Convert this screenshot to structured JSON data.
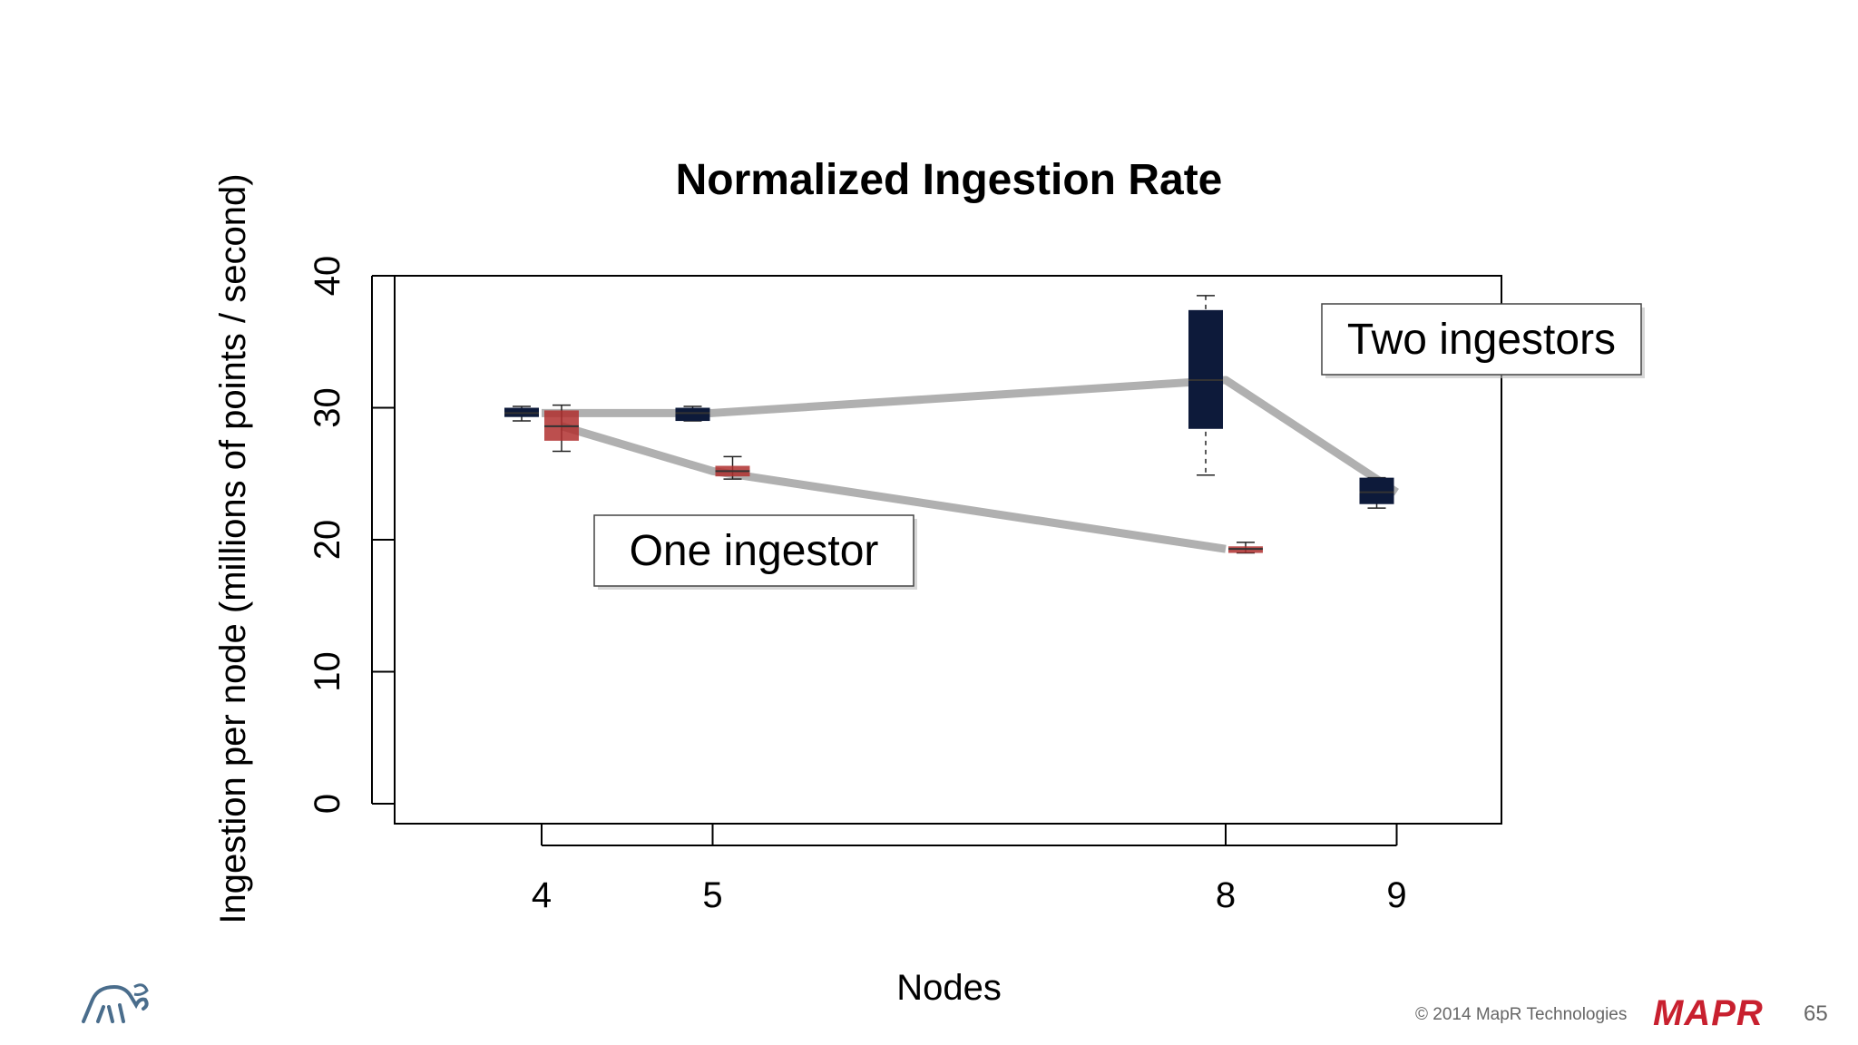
{
  "chart_data": {
    "type": "box",
    "title": "Normalized Ingestion Rate",
    "xlabel": "Nodes",
    "ylabel": "Ingestion per node (millions of points / second)",
    "x_ticks": [
      4,
      5,
      8,
      9
    ],
    "y_ticks": [
      0,
      10,
      20,
      30,
      40
    ],
    "ylim": [
      0,
      40
    ],
    "xlim": [
      3.2,
      9.6
    ],
    "grid": false,
    "series": [
      {
        "name": "Two ingestors",
        "color": "#0d1a3a",
        "boxes": [
          {
            "x": 4,
            "min": 29.0,
            "q1": 29.3,
            "median": 29.6,
            "q3": 30.0,
            "max": 30.1
          },
          {
            "x": 5,
            "min": 29.0,
            "q1": 29.0,
            "median": 29.6,
            "q3": 30.0,
            "max": 30.1
          },
          {
            "x": 8,
            "min": 24.9,
            "q1": 28.4,
            "median": 32.1,
            "q3": 37.4,
            "max": 38.5
          },
          {
            "x": 9,
            "min": 22.4,
            "q1": 22.7,
            "median": 23.6,
            "q3": 24.7,
            "max": 24.7
          }
        ]
      },
      {
        "name": "One ingestor",
        "color": "#b0302f",
        "boxes": [
          {
            "x": 4,
            "min": 26.7,
            "q1": 27.5,
            "median": 28.6,
            "q3": 29.8,
            "max": 30.2
          },
          {
            "x": 5,
            "min": 24.6,
            "q1": 24.8,
            "median": 25.2,
            "q3": 25.6,
            "max": 26.3
          },
          {
            "x": 8,
            "min": 19.0,
            "q1": 19.0,
            "median": 19.3,
            "q3": 19.5,
            "max": 19.8
          }
        ]
      }
    ],
    "annotations": [
      "Two ingestors",
      "One ingestor"
    ]
  },
  "footer": {
    "copyright": "© 2014 MapR Technologies",
    "brand": "MAPR",
    "page_number": "65"
  },
  "icons": {
    "logo_left": "elephant-logo-icon"
  }
}
